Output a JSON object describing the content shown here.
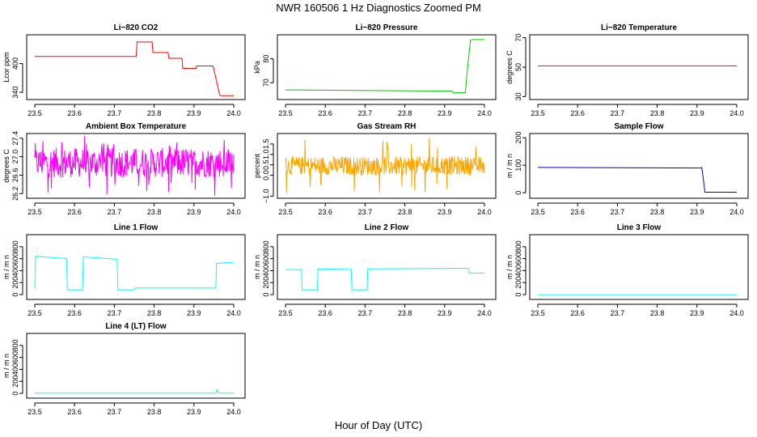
{
  "figure": {
    "title": "NWR  160506  1 Hz Diagnostics Zoomed PM",
    "xlabel": "Hour of Day (UTC)"
  },
  "chart_data": [
    {
      "type": "line",
      "title": "Li−820 CO2",
      "ylabel": "Lcor ppm",
      "color": "#ff0000",
      "xlim": [
        23.5,
        24.0
      ],
      "xticks": [
        "23.5",
        "23.6",
        "23.7",
        "23.8",
        "23.9",
        "24.0"
      ],
      "ylim": [
        325,
        460
      ],
      "yticks": [
        "340",
        "400"
      ],
      "ytick_values": [
        340,
        400
      ],
      "x": [
        23.5,
        23.755,
        23.757,
        23.795,
        23.797,
        23.835,
        23.837,
        23.87,
        23.872,
        23.905,
        23.907,
        23.948,
        23.965,
        23.97,
        24.0
      ],
      "y": [
        415,
        415,
        445,
        445,
        423,
        423,
        411,
        411,
        390,
        390,
        395,
        395,
        334,
        333,
        333
      ]
    },
    {
      "type": "line",
      "title": "Li−820 Pressure",
      "ylabel": "kPa",
      "color": "#00cc00",
      "xlim": [
        23.5,
        24.0
      ],
      "xticks": [
        "23.5",
        "23.6",
        "23.7",
        "23.8",
        "23.9",
        "24.0"
      ],
      "ylim": [
        63,
        90
      ],
      "yticks": [
        "70",
        "80"
      ],
      "ytick_values": [
        70,
        80
      ],
      "x": [
        23.5,
        23.92,
        23.922,
        23.952,
        23.955,
        23.96,
        23.965,
        23.97,
        24.0
      ],
      "y": [
        67.0,
        66.5,
        65.8,
        65.9,
        72,
        80,
        87.8,
        88.0,
        88.0
      ]
    },
    {
      "type": "line",
      "title": "Li−820 Temperature",
      "ylabel": "degrees C",
      "color": "#cc00cc",
      "xlim": [
        23.5,
        24.0
      ],
      "xticks": [
        "23.5",
        "23.6",
        "23.7",
        "23.8",
        "23.9",
        "24.0"
      ],
      "ylim": [
        28,
        72
      ],
      "yticks": [
        "30",
        "50",
        "70"
      ],
      "ytick_values": [
        30,
        50,
        70
      ],
      "x": [
        23.5,
        24.0
      ],
      "y": [
        50.9,
        50.9
      ]
    },
    {
      "type": "line",
      "title": "Ambient Box Temperature",
      "ylabel": "degrees C",
      "color": "#ff00ff",
      "xlim": [
        23.5,
        24.0
      ],
      "xticks": [
        "23.5",
        "23.6",
        "23.7",
        "23.8",
        "23.9",
        "24.0"
      ],
      "ylim": [
        26.1,
        27.5
      ],
      "yticks": [
        "26.2",
        "26.6",
        "27.0",
        "27.4"
      ],
      "ytick_values": [
        26.2,
        26.6,
        27.0,
        27.4
      ],
      "x_range": [
        23.5,
        24.0
      ],
      "mean": 26.87,
      "amplitude": 0.32,
      "spike_low": 26.15,
      "spike_high": 27.45
    },
    {
      "type": "line",
      "title": "Gas Stream RH",
      "ylabel": "percent",
      "color": "#ffa500",
      "xlim": [
        23.5,
        24.0
      ],
      "xticks": [
        "23.5",
        "23.6",
        "23.7",
        "23.8",
        "23.9",
        "24.0"
      ],
      "ylim": [
        -1.1,
        2.0
      ],
      "yticks": [
        "−1.0",
        "0.0",
        "0.5",
        "1.0",
        "1.5"
      ],
      "ytick_values": [
        -1.0,
        0.0,
        0.5,
        1.0,
        1.5
      ],
      "x_range": [
        23.5,
        24.0
      ],
      "mean": 0.45,
      "amplitude": 0.45,
      "spike_low": -0.9,
      "spike_high": 1.8
    },
    {
      "type": "line",
      "title": "Sample Flow",
      "ylabel": "m / m n",
      "color": "#0000cc",
      "xlim": [
        23.5,
        24.0
      ],
      "xticks": [
        "23.5",
        "23.6",
        "23.7",
        "23.8",
        "23.9",
        "24.0"
      ],
      "ylim": [
        -20,
        215
      ],
      "yticks": [
        "0",
        "100",
        "200"
      ],
      "ytick_values": [
        0,
        100,
        200
      ],
      "x": [
        23.5,
        23.91,
        23.912,
        23.915,
        23.92,
        24.0
      ],
      "y": [
        92,
        90,
        92,
        60,
        2,
        2
      ]
    },
    {
      "type": "line",
      "title": "Line 1 Flow",
      "ylabel": "m / m n",
      "color": "#00ffff",
      "xlim": [
        23.5,
        24.0
      ],
      "xticks": [
        "23.5",
        "23.6",
        "23.7",
        "23.8",
        "23.9",
        "24.0"
      ],
      "ylim": [
        -80,
        1000
      ],
      "yticks": [
        "0",
        "200",
        "400",
        "600",
        "800"
      ],
      "ytick_values": [
        0,
        200,
        400,
        600,
        800
      ],
      "x": [
        23.5,
        23.502,
        23.58,
        23.582,
        23.62,
        23.622,
        23.707,
        23.709,
        23.75,
        23.752,
        23.955,
        23.957,
        24.0
      ],
      "y": [
        100,
        640,
        600,
        80,
        80,
        630,
        590,
        80,
        80,
        110,
        110,
        520,
        540
      ]
    },
    {
      "type": "line",
      "title": "Line 2 Flow",
      "ylabel": "m / m n",
      "color": "#00ffff",
      "xlim": [
        23.5,
        24.0
      ],
      "xticks": [
        "23.5",
        "23.6",
        "23.7",
        "23.8",
        "23.9",
        "24.0"
      ],
      "ylim": [
        -80,
        1000
      ],
      "yticks": [
        "0",
        "200",
        "400",
        "600",
        "800"
      ],
      "ytick_values": [
        0,
        200,
        400,
        600,
        800
      ],
      "x": [
        23.5,
        23.54,
        23.542,
        23.58,
        23.582,
        23.665,
        23.667,
        23.705,
        23.707,
        23.96,
        23.962,
        24.0
      ],
      "y": [
        420,
        415,
        80,
        80,
        430,
        420,
        80,
        80,
        430,
        440,
        360,
        360
      ]
    },
    {
      "type": "line",
      "title": "Line 3 Flow",
      "ylabel": "m / m n",
      "color": "#00ffff",
      "xlim": [
        23.5,
        24.0
      ],
      "xticks": [
        "23.5",
        "23.6",
        "23.7",
        "23.8",
        "23.9",
        "24.0"
      ],
      "ylim": [
        -80,
        1000
      ],
      "yticks": [
        "0",
        "200",
        "400",
        "600",
        "800"
      ],
      "ytick_values": [
        0,
        200,
        400,
        600,
        800
      ],
      "x": [
        23.5,
        24.0
      ],
      "y": [
        0,
        0
      ]
    },
    {
      "type": "line",
      "title": "Line 4 (LT) Flow",
      "ylabel": "m / m n",
      "color": "#00ffff",
      "xlim": [
        23.5,
        24.0
      ],
      "xticks": [
        "23.5",
        "23.6",
        "23.7",
        "23.8",
        "23.9",
        "24.0"
      ],
      "ylim": [
        -80,
        1000
      ],
      "yticks": [
        "0",
        "200",
        "400",
        "600",
        "800"
      ],
      "ytick_values": [
        0,
        200,
        400,
        600,
        800
      ],
      "x": [
        23.5,
        23.955,
        23.958,
        23.961,
        23.964,
        24.0
      ],
      "y": [
        5,
        5,
        60,
        10,
        5,
        5
      ]
    }
  ]
}
